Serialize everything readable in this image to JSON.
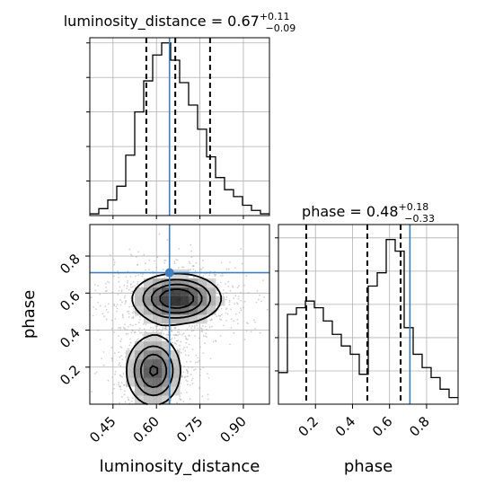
{
  "chart_data": {
    "type": "corner",
    "parameters": [
      "luminosity_distance",
      "phase"
    ],
    "colors": {
      "truth": "#3f7fbf",
      "hist": "#000000",
      "grid": "#b0b0b0",
      "quantile": "#000000"
    },
    "truth": {
      "luminosity_distance": 0.645,
      "phase": 0.71
    },
    "marginals": [
      {
        "param": "luminosity_distance",
        "title_prefix": "luminosity_distance = ",
        "median": "0.67",
        "plus": "+0.11",
        "minus": "−0.09",
        "quantiles": [
          0.565,
          0.665,
          0.785
        ],
        "xlim": [
          0.37,
          0.99
        ],
        "ylim": [
          0,
          1.03
        ],
        "bin_edges": [
          0.37,
          0.401,
          0.432,
          0.463,
          0.494,
          0.525,
          0.556,
          0.587,
          0.618,
          0.649,
          0.68,
          0.711,
          0.742,
          0.773,
          0.804,
          0.835,
          0.866,
          0.897,
          0.928,
          0.959,
          0.99
        ],
        "counts": [
          0.01,
          0.04,
          0.09,
          0.17,
          0.35,
          0.6,
          0.78,
          0.93,
          1.0,
          0.9,
          0.77,
          0.64,
          0.5,
          0.34,
          0.22,
          0.15,
          0.11,
          0.06,
          0.03,
          0.01
        ]
      },
      {
        "param": "phase",
        "title_prefix": "phase = ",
        "median": "0.48",
        "plus": "+0.18",
        "minus": "−0.33",
        "quantiles": [
          0.15,
          0.48,
          0.66
        ],
        "xlim": [
          0.0,
          0.97
        ],
        "ylim": [
          0,
          1.08
        ],
        "bin_edges": [
          0.0,
          0.0485,
          0.097,
          0.1455,
          0.194,
          0.2425,
          0.291,
          0.3395,
          0.388,
          0.4365,
          0.485,
          0.5335,
          0.582,
          0.6305,
          0.679,
          0.7275,
          0.776,
          0.8245,
          0.873,
          0.9215,
          0.97
        ],
        "counts": [
          0.19,
          0.54,
          0.58,
          0.62,
          0.58,
          0.5,
          0.42,
          0.35,
          0.3,
          0.18,
          0.71,
          0.79,
          0.99,
          0.92,
          0.46,
          0.3,
          0.22,
          0.16,
          0.09,
          0.04
        ]
      }
    ],
    "joint": {
      "x": "luminosity_distance",
      "y": "phase",
      "xlim": [
        0.37,
        0.99
      ],
      "ylim": [
        0.0,
        0.97
      ],
      "xticks": [
        "0.45",
        "0.60",
        "0.75",
        "0.90"
      ],
      "xtick_values": [
        0.45,
        0.6,
        0.75,
        0.9
      ],
      "yticks": [
        "0.2",
        "0.4",
        "0.6",
        "0.8"
      ],
      "ytick_values": [
        0.2,
        0.4,
        0.6,
        0.8
      ],
      "modes": [
        {
          "x": 0.67,
          "y": 0.57,
          "sx": 0.085,
          "sy": 0.075,
          "weight": 0.55
        },
        {
          "x": 0.59,
          "y": 0.18,
          "sx": 0.055,
          "sy": 0.11,
          "weight": 0.45
        }
      ]
    },
    "phase_xticks": [
      "0.2",
      "0.4",
      "0.6",
      "0.8"
    ],
    "phase_xtick_values": [
      0.2,
      0.4,
      0.6,
      0.8
    ],
    "xlabels": [
      "luminosity_distance",
      "phase"
    ],
    "ylabel": "phase"
  }
}
